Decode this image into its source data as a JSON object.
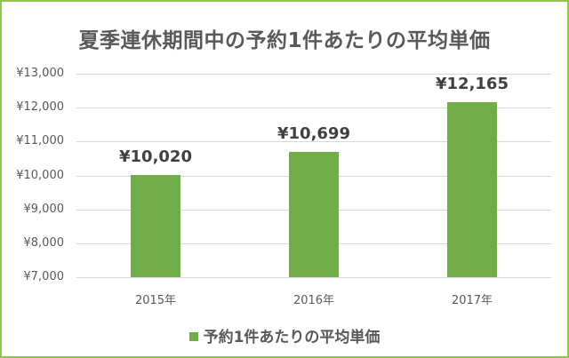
{
  "chart_data": {
    "type": "bar",
    "title": "夏季連休期間中の予約1件あたりの平均単価",
    "categories": [
      "2015年",
      "2016年",
      "2017年"
    ],
    "series": [
      {
        "name": "予約1件あたりの平均単価",
        "values": [
          10020,
          10699,
          12165
        ],
        "color": "#70ad47"
      }
    ],
    "data_labels": [
      "¥10,020",
      "¥10,699",
      "¥12,165"
    ],
    "xlabel": "",
    "ylabel": "",
    "ylim": [
      7000,
      13000
    ],
    "yticks": [
      13000,
      12000,
      11000,
      10000,
      9000,
      8000,
      7000
    ],
    "ytick_labels": [
      "¥13,000",
      "¥12,000",
      "¥11,000",
      "¥10,000",
      "¥9,000",
      "¥8,000",
      "¥7,000"
    ],
    "grid": true,
    "legend_position": "bottom"
  },
  "colors": {
    "border": "#8cc84b",
    "bar": "#70ad47",
    "grid": "#d9d9d9"
  }
}
